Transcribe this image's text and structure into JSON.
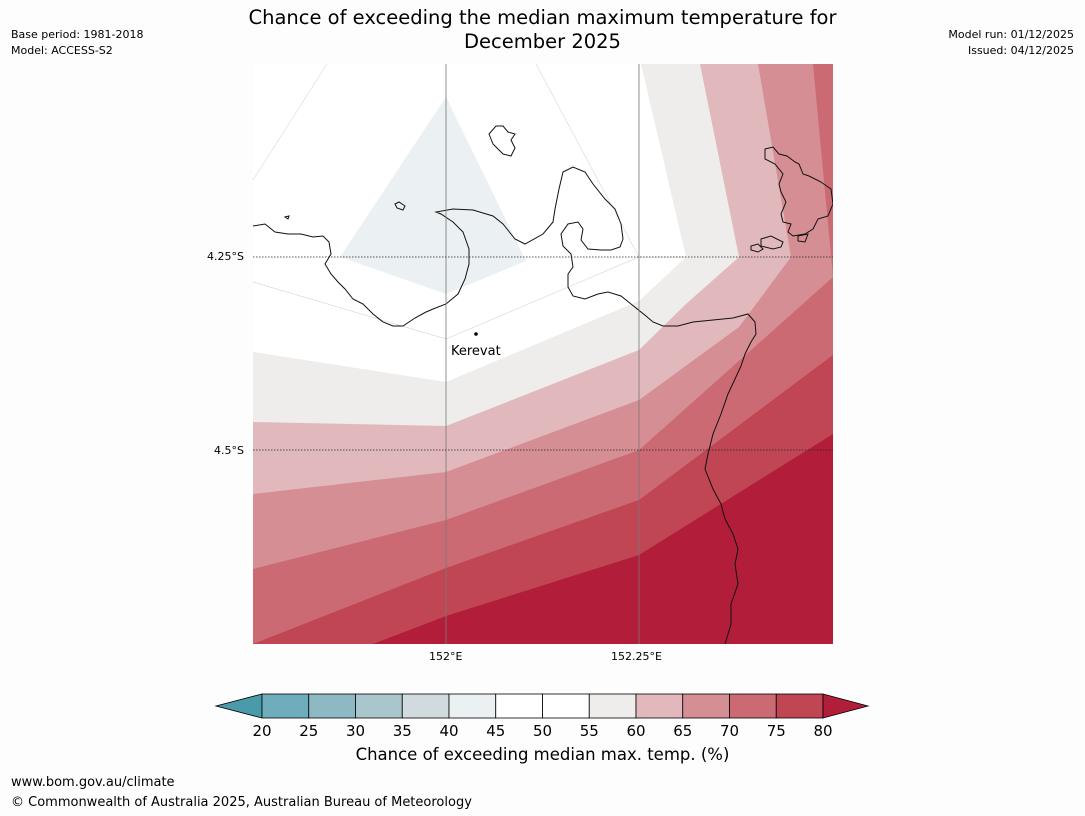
{
  "title_line1": "Chance of exceeding the median maximum temperature for",
  "title_line2": "December 2025",
  "base_period": "Base period: 1981-2018",
  "model": "Model: ACCESS-S2",
  "model_run": "Model run: 01/12/2025",
  "issued": "Issued: 04/12/2025",
  "map": {
    "lat_labels": [
      "4.25°S",
      "4.5°S"
    ],
    "lon_labels": [
      "152°E",
      "152.25°E"
    ],
    "place": "Kerevat"
  },
  "colorbar": {
    "ticks": [
      "20",
      "25",
      "30",
      "35",
      "40",
      "45",
      "50",
      "55",
      "60",
      "65",
      "70",
      "75",
      "80"
    ],
    "colors": [
      "#4a9aaa",
      "#6fadbc",
      "#8db8c4",
      "#a9c6cc",
      "#d1dadc",
      "#ebf0f2",
      "#ffffff",
      "#ffffff",
      "#eeedeb",
      "#e1b9bd",
      "#d68e95",
      "#cb6a72",
      "#c04653",
      "#b21e3a"
    ],
    "title": "Chance of exceeding median max. temp. (%)"
  },
  "footer": {
    "url": "www.bom.gov.au/climate",
    "copyright": "© Commonwealth of Australia 2025, Australian Bureau of Meteorology"
  }
}
